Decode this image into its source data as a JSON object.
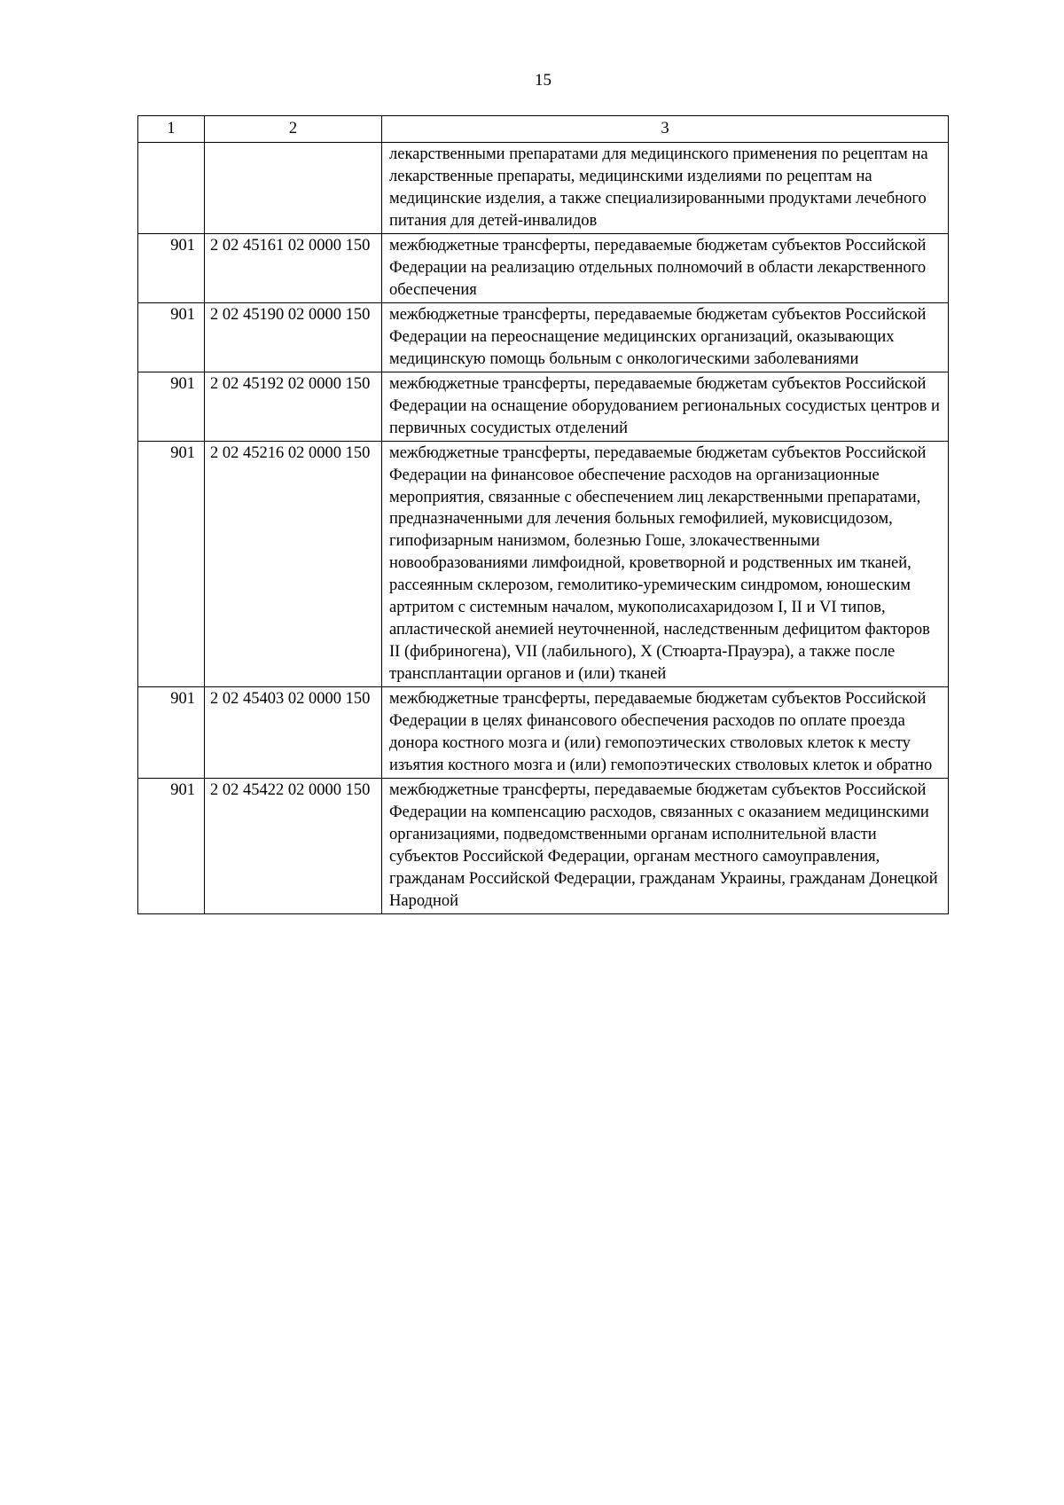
{
  "page_number": "15",
  "header": {
    "col1": "1",
    "col2": "2",
    "col3": "3"
  },
  "rows": [
    {
      "col1": "",
      "col2": "",
      "col3": "лекарственными препаратами для медицинского применения по рецептам на лекарственные препараты, медицинскими изделиями по рецептам на медицинские изделия, а также специализированными продуктами лечебного питания для детей-инвалидов"
    },
    {
      "col1": "901",
      "col2": "2 02 45161 02 0000 150",
      "col3": "межбюджетные трансферты, передаваемые бюджетам субъектов Российской Федерации на реализацию отдельных полномочий в области лекарственного обеспечения"
    },
    {
      "col1": "901",
      "col2": "2 02 45190 02 0000 150",
      "col3": "межбюджетные трансферты, передаваемые бюджетам субъектов Российской Федерации на переоснащение медицинских организаций, оказывающих медицинскую помощь больным с онкологическими заболеваниями"
    },
    {
      "col1": "901",
      "col2": "2 02 45192 02 0000 150",
      "col3": "межбюджетные трансферты, передаваемые бюджетам субъектов Российской Федерации на оснащение оборудованием региональных сосудистых центров и первичных сосудистых отделений"
    },
    {
      "col1": "901",
      "col2": "2 02 45216 02 0000 150",
      "col3": "межбюджетные трансферты, передаваемые бюджетам субъектов Российской Федерации на финансовое обеспечение расходов на организационные мероприятия, связанные с обеспечением лиц лекарственными препаратами, предназначенными для лечения больных гемофилией, муковисцидозом, гипофизарным нанизмом, болезнью Гоше, злокачественными новообразованиями лимфоидной, кроветворной и родственных им тканей, рассеянным склерозом, гемолитико-уремическим синдромом, юношеским артритом с системным началом, мукополисахаридозом I, II и VI типов, апластической анемией неуточненной, наследственным дефицитом факторов II (фибриногена), VII (лабильного), X (Стюарта-Прауэра), а также после трансплантации органов и (или) тканей"
    },
    {
      "col1": "901",
      "col2": "2 02 45403 02 0000 150",
      "col3": "межбюджетные трансферты, передаваемые бюджетам субъектов Российской Федерации в целях финансового обеспечения расходов по оплате проезда донора костного мозга и (или) гемопоэтических стволовых клеток к месту изъятия костного мозга и (или) гемопоэтических стволовых клеток и обратно"
    },
    {
      "col1": "901",
      "col2": "2 02 45422 02 0000 150",
      "col3": "межбюджетные трансферты, передаваемые бюджетам субъектов Российской Федерации на компенсацию расходов, связанных с оказанием медицинскими организациями, подведомственными органам исполнительной власти субъектов Российской Федерации, органам местного самоуправления, гражданам Российской Федерации, гражданам Украины, гражданам Донецкой Народной"
    }
  ]
}
